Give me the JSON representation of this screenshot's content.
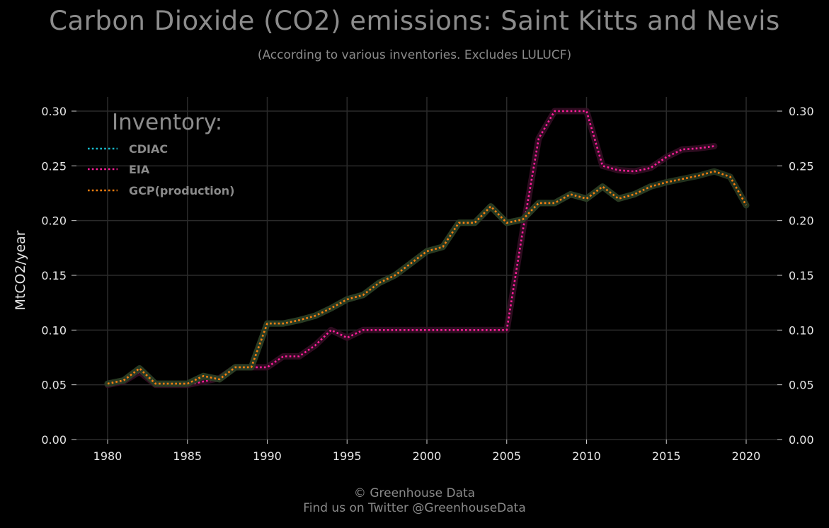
{
  "chart_data": {
    "type": "line",
    "title": "Carbon Dioxide (CO2) emissions: Saint Kitts and Nevis",
    "subtitle": "(According to various inventories. Excludes LULUCF)",
    "xlabel": "",
    "ylabel": "MtCO2/year",
    "xlim": [
      1978,
      2022
    ],
    "ylim": [
      0,
      0.3
    ],
    "x_ticks": [
      "1980",
      "1985",
      "1990",
      "1995",
      "2000",
      "2005",
      "2010",
      "2015",
      "2020"
    ],
    "y_ticks": [
      "0.00",
      "0.05",
      "0.10",
      "0.15",
      "0.20",
      "0.25",
      "0.30"
    ],
    "grid": true,
    "legend": {
      "title": "Inventory:",
      "placement": "top-left"
    },
    "series": [
      {
        "name": "CDIAC",
        "color": "#17becf",
        "x": [
          1980,
          1981,
          1982,
          1983,
          1984,
          1985,
          1986,
          1987,
          1988,
          1989,
          1990,
          1991,
          1992,
          1993,
          1994,
          1995,
          1996,
          1997,
          1998,
          1999,
          2000,
          2001,
          2002,
          2003,
          2004,
          2005,
          2006,
          2007,
          2008,
          2009,
          2010,
          2011,
          2012,
          2013,
          2014
        ],
        "y": [
          0.051,
          0.054,
          0.065,
          0.051,
          0.051,
          0.051,
          0.058,
          0.055,
          0.066,
          0.066,
          0.106,
          0.106,
          0.109,
          0.113,
          0.12,
          0.128,
          0.132,
          0.143,
          0.15,
          0.161,
          0.172,
          0.176,
          0.198,
          0.198,
          0.213,
          0.198,
          0.201,
          0.216,
          0.216,
          0.224,
          0.22,
          0.231,
          0.22,
          0.224,
          0.231
        ]
      },
      {
        "name": "EIA",
        "color": "#ff1f9b",
        "x": [
          1980,
          1981,
          1982,
          1983,
          1984,
          1985,
          1986,
          1987,
          1988,
          1989,
          1990,
          1991,
          1992,
          1993,
          1994,
          1995,
          1996,
          1997,
          1998,
          1999,
          2000,
          2001,
          2002,
          2003,
          2004,
          2005,
          2006,
          2007,
          2008,
          2009,
          2010,
          2011,
          2012,
          2013,
          2014,
          2015,
          2016,
          2017,
          2018
        ],
        "y": [
          0.05,
          0.053,
          0.062,
          0.05,
          0.05,
          0.05,
          0.053,
          0.056,
          0.066,
          0.066,
          0.066,
          0.076,
          0.076,
          0.086,
          0.1,
          0.093,
          0.1,
          0.1,
          0.1,
          0.1,
          0.1,
          0.1,
          0.1,
          0.1,
          0.1,
          0.1,
          0.19,
          0.275,
          0.3,
          0.3,
          0.3,
          0.25,
          0.246,
          0.245,
          0.248,
          0.258,
          0.265,
          0.266,
          0.268
        ]
      },
      {
        "name": "GCP(production)",
        "color": "#ff7f0e",
        "x": [
          1980,
          1981,
          1982,
          1983,
          1984,
          1985,
          1986,
          1987,
          1988,
          1989,
          1990,
          1991,
          1992,
          1993,
          1994,
          1995,
          1996,
          1997,
          1998,
          1999,
          2000,
          2001,
          2002,
          2003,
          2004,
          2005,
          2006,
          2007,
          2008,
          2009,
          2010,
          2011,
          2012,
          2013,
          2014,
          2015,
          2016,
          2017,
          2018,
          2019,
          2020
        ],
        "y": [
          0.051,
          0.054,
          0.065,
          0.051,
          0.051,
          0.051,
          0.058,
          0.055,
          0.066,
          0.066,
          0.106,
          0.106,
          0.109,
          0.113,
          0.12,
          0.128,
          0.132,
          0.143,
          0.15,
          0.161,
          0.172,
          0.176,
          0.198,
          0.198,
          0.213,
          0.198,
          0.201,
          0.216,
          0.216,
          0.224,
          0.22,
          0.231,
          0.22,
          0.224,
          0.231,
          0.235,
          0.238,
          0.241,
          0.245,
          0.24,
          0.214
        ]
      }
    ]
  },
  "footer": {
    "line1": "© Greenhouse Data",
    "line2": "Find us on Twitter @GreenhouseData"
  }
}
